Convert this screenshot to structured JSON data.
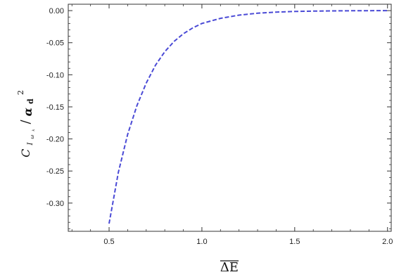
{
  "chart_data": {
    "type": "line",
    "title": "",
    "xlabel": "ΔE",
    "xlabel_overline": true,
    "ylabel": {
      "main": "C",
      "sub1": "I",
      "sub2": "ω",
      "sub3": "k",
      "denominator": "α",
      "denominator_sub": "d",
      "denominator_power": "2"
    },
    "xlim": [
      0.28,
      2.02
    ],
    "ylim": [
      -0.344,
      0.01
    ],
    "x_ticks": [
      {
        "v": 0.5,
        "label": "0.5"
      },
      {
        "v": 1.0,
        "label": "1.0"
      },
      {
        "v": 1.5,
        "label": "1.5"
      },
      {
        "v": 2.0,
        "label": "2.0"
      }
    ],
    "y_ticks": [
      {
        "v": 0.0,
        "label": "0.00"
      },
      {
        "v": -0.05,
        "label": "-0.05"
      },
      {
        "v": -0.1,
        "label": "-0.10"
      },
      {
        "v": -0.15,
        "label": "-0.15"
      },
      {
        "v": -0.2,
        "label": "-0.20"
      },
      {
        "v": -0.25,
        "label": "-0.25"
      },
      {
        "v": -0.3,
        "label": "-0.30"
      }
    ],
    "grid": false,
    "series": [
      {
        "color": "#4a4ad6",
        "style": "dashed",
        "x": [
          0.5,
          0.55,
          0.6,
          0.65,
          0.7,
          0.75,
          0.8,
          0.85,
          0.9,
          0.95,
          1.0,
          1.1,
          1.2,
          1.3,
          1.4,
          1.5,
          1.6,
          1.7,
          1.8,
          1.9,
          2.0
        ],
        "y": [
          -0.332,
          -0.252,
          -0.193,
          -0.148,
          -0.113,
          -0.085,
          -0.064,
          -0.048,
          -0.036,
          -0.027,
          -0.02,
          -0.012,
          -0.007,
          -0.004,
          -0.0023,
          -0.0013,
          -0.0007,
          -0.0004,
          -0.0002,
          -0.0001,
          0.0
        ]
      }
    ]
  }
}
